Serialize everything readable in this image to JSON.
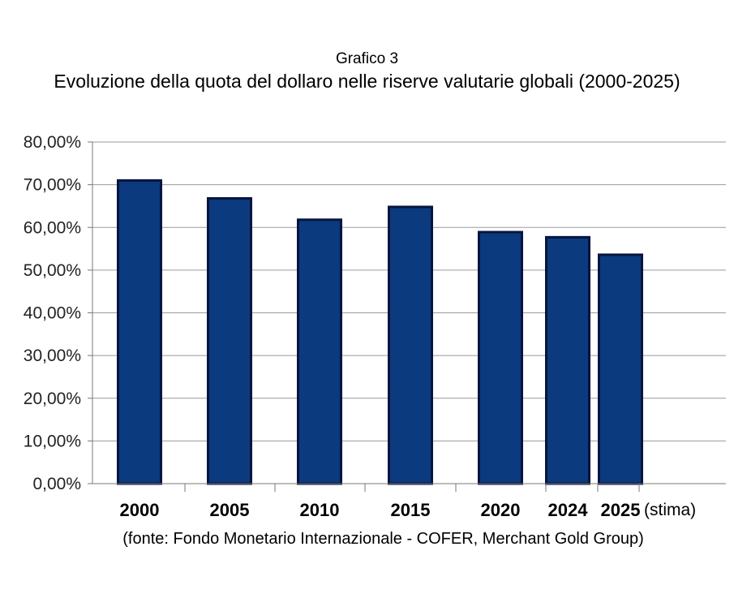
{
  "chart_data": {
    "type": "bar",
    "title": "Grafico 3",
    "subtitle": "Evoluzione della quota del dollaro nelle riserve valutarie globali (2000-2025)",
    "categories": [
      "2000",
      "2005",
      "2010",
      "2015",
      "2020",
      "2024",
      "2025"
    ],
    "values": [
      71.0,
      66.8,
      61.8,
      64.8,
      58.9,
      57.7,
      53.6
    ],
    "ylim": [
      0,
      80
    ],
    "yticks": [
      0,
      10,
      20,
      30,
      40,
      50,
      60,
      70,
      80
    ],
    "ytick_labels": [
      "0,00%",
      "10,00%",
      "20,00%",
      "30,00%",
      "40,00%",
      "50,00%",
      "60,00%",
      "70,00%",
      "80,00%"
    ],
    "category_note": "(stima)",
    "source": "(fonte: Fondo Monetario Internazionale - COFER, Merchant Gold Group)",
    "grid": true,
    "bar_color": "#0b3a7e",
    "bar_border_color": "#07153f"
  }
}
